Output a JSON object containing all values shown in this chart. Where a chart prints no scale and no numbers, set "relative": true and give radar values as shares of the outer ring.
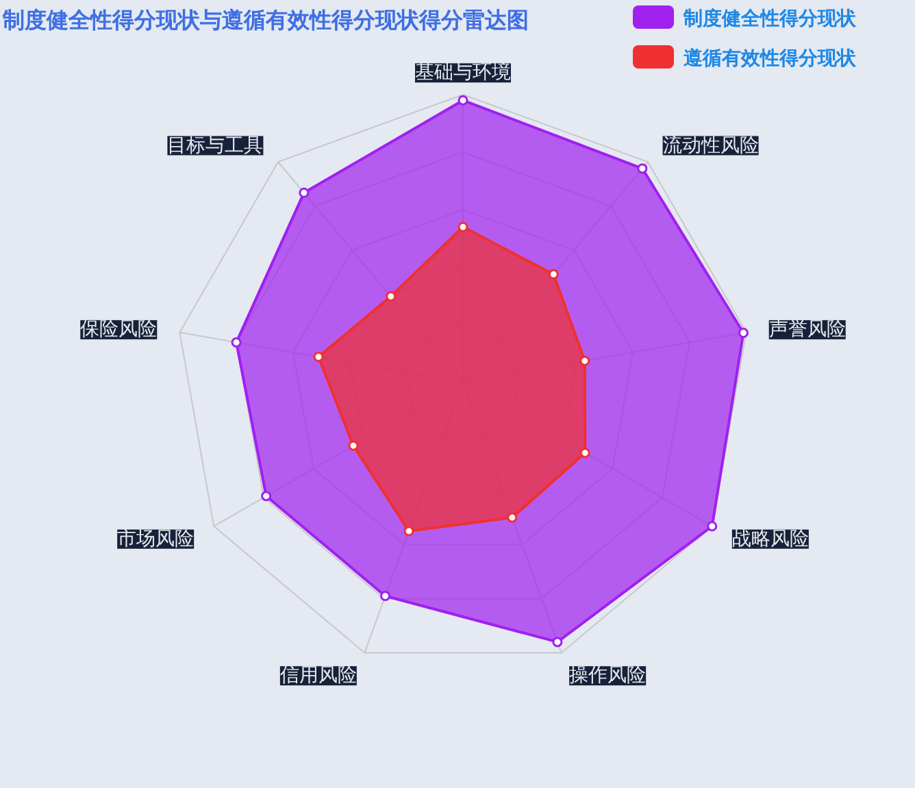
{
  "chart_data": {
    "type": "radar",
    "title": "制度健全性得分现状与遵循有效性得分现状得分雷达图",
    "relative": true,
    "grid": true,
    "legend": "top right",
    "marker": "circle",
    "categories": [
      "基础与环境",
      "流动性风险",
      "声誉风险",
      "战略风险",
      "操作风险",
      "信用风险",
      "市场风险",
      "保险风险",
      "目标与工具"
    ],
    "series": [
      {
        "name": "制度健全性得分现状",
        "color": "#a020f0",
        "values": [
          0.98,
          0.97,
          0.99,
          1.0,
          0.96,
          0.79,
          0.79,
          0.8,
          0.86
        ]
      },
      {
        "name": "遵循有效性得分现状",
        "color": "#f03030",
        "values": [
          0.54,
          0.49,
          0.43,
          0.49,
          0.5,
          0.55,
          0.44,
          0.51,
          0.39
        ]
      }
    ]
  }
}
